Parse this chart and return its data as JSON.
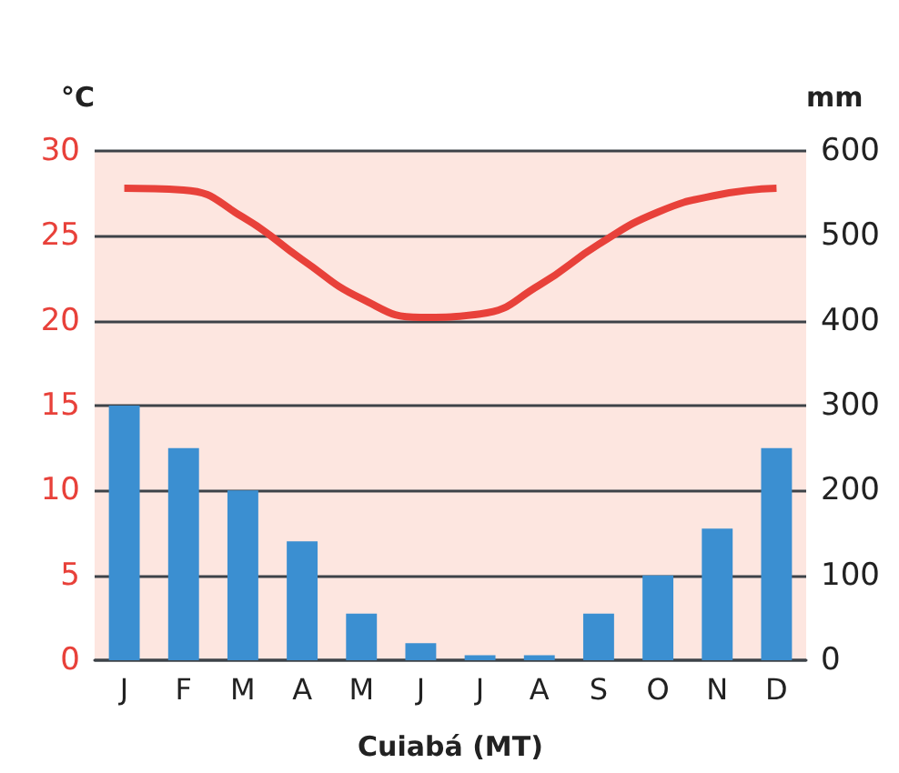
{
  "chart_data": {
    "type": "bar",
    "xlabel": "Cuiabá (MT)",
    "ylabel": "°C",
    "y2label": "mm",
    "categories": [
      "J",
      "F",
      "M",
      "A",
      "M",
      "J",
      "J",
      "A",
      "S",
      "O",
      "N",
      "D"
    ],
    "series": [
      {
        "axis": "y2",
        "color": "#3b8fd1",
        "values": [
          300,
          250,
          200,
          140,
          55,
          20,
          6,
          6,
          55,
          100,
          155,
          250
        ]
      },
      {
        "type": "line",
        "axis": "y",
        "color": "#e8413a",
        "marker": "none",
        "values": [
          27.8,
          27.7,
          26.1,
          23.6,
          21.3,
          20.2,
          20.4,
          22.1,
          24.5,
          26.4,
          27.4,
          27.8
        ]
      }
    ],
    "ylim": [
      0,
      30
    ],
    "yticks": [
      0,
      5,
      10,
      15,
      20,
      25,
      30
    ],
    "y2lim": [
      0,
      600
    ],
    "y2ticks": [
      0,
      100,
      200,
      300,
      400,
      500,
      600
    ],
    "grid": "y"
  }
}
